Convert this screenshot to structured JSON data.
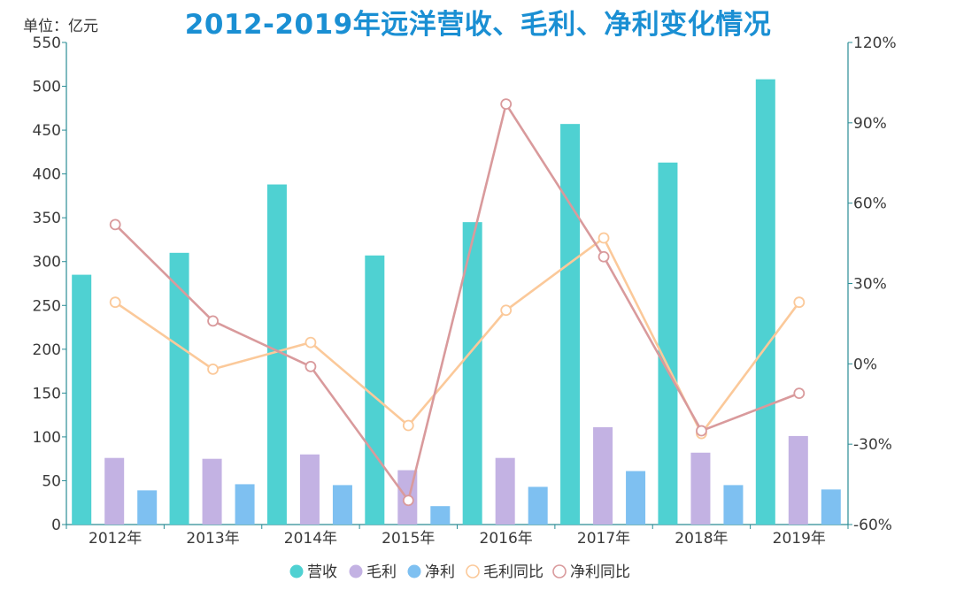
{
  "title": "2012-2019年远洋营收、毛利、净利变化情况",
  "unit_label": "单位：亿元",
  "colors": {
    "revenue": "#4fd1d2",
    "gross": "#c3b2e3",
    "net": "#7ec0f1",
    "gross_yoy": "#fbc99a",
    "net_yoy": "#d99a9c",
    "axis": "#2a8c95",
    "title": "#1a8fd3"
  },
  "chart_data": {
    "type": "bar",
    "title": "2012-2019年远洋营收、毛利、净利变化情况",
    "categories": [
      "2012年",
      "2013年",
      "2014年",
      "2015年",
      "2016年",
      "2017年",
      "2018年",
      "2019年"
    ],
    "series": [
      {
        "name": "营收",
        "type": "bar",
        "axis": "left",
        "values": [
          285,
          310,
          388,
          307,
          345,
          457,
          413,
          508
        ]
      },
      {
        "name": "毛利",
        "type": "bar",
        "axis": "left",
        "values": [
          76,
          75,
          80,
          62,
          76,
          111,
          82,
          101
        ]
      },
      {
        "name": "净利",
        "type": "bar",
        "axis": "left",
        "values": [
          39,
          46,
          45,
          21,
          43,
          61,
          45,
          40
        ]
      },
      {
        "name": "毛利同比",
        "type": "line",
        "axis": "right",
        "values": [
          23,
          -2,
          8,
          -23,
          20,
          47,
          -26,
          23
        ]
      },
      {
        "name": "净利同比",
        "type": "line",
        "axis": "right",
        "values": [
          52,
          16,
          -1,
          -51,
          97,
          40,
          -25,
          -11
        ]
      }
    ],
    "y_left": {
      "min": 0,
      "max": 550,
      "ticks": [
        "0",
        "50",
        "100",
        "150",
        "200",
        "250",
        "300",
        "350",
        "400",
        "450",
        "500",
        "550"
      ]
    },
    "y_right": {
      "min": -60,
      "max": 120,
      "ticks": [
        "-60%",
        "-30%",
        "0%",
        "30%",
        "60%",
        "90%",
        "120%"
      ]
    },
    "legend": {
      "position": "bottom",
      "items": [
        "营收",
        "毛利",
        "净利",
        "毛利同比",
        "净利同比"
      ]
    },
    "grid": false
  }
}
